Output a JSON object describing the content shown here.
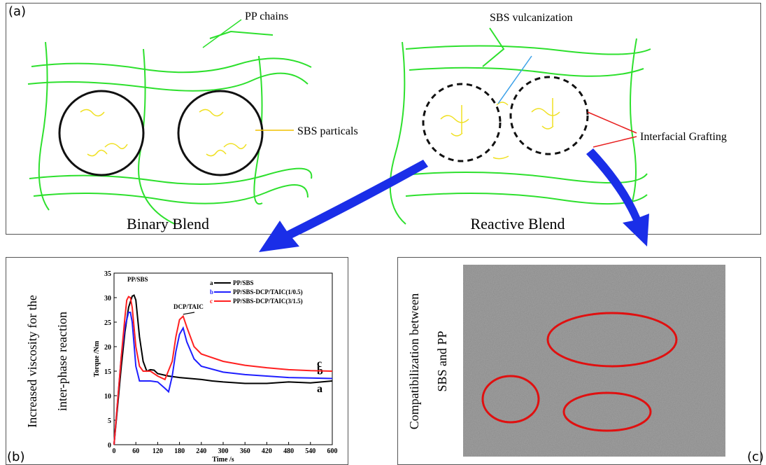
{
  "panel_a": {
    "tag": "(a)",
    "pp_chains": "PP chains",
    "sbs_vulcanization": "SBS vulcanization",
    "sbs_particals": "SBS particals",
    "interfacial_grafting": "Interfacial Grafting",
    "binary_blend": "Binary Blend",
    "reactive_blend": "Reactive Blend"
  },
  "panel_b": {
    "tag": "(b)",
    "caption_lines": [
      "Increased viscosity for the",
      "inter-phase reaction"
    ]
  },
  "chart_data": {
    "type": "line",
    "xlabel": "Time /s",
    "ylabel": "Torque /Nm",
    "xlim": [
      0,
      600
    ],
    "xticks": [
      0,
      60,
      120,
      180,
      240,
      300,
      360,
      420,
      480,
      540,
      600
    ],
    "ylim": [
      0,
      35
    ],
    "yticks": [
      0,
      5,
      10,
      15,
      20,
      25,
      30,
      35
    ],
    "annotations": [
      "PP/SBS",
      "DCP/TAIC"
    ],
    "legend": "upper right",
    "series": [
      {
        "key": "a",
        "name": "PP/SBS",
        "color": "#000000",
        "x": [
          0,
          10,
          20,
          30,
          40,
          50,
          55,
          60,
          70,
          80,
          90,
          100,
          110,
          120,
          150,
          180,
          210,
          240,
          270,
          300,
          360,
          420,
          480,
          540,
          600
        ],
        "values": [
          0,
          8,
          16,
          23,
          28,
          30.3,
          30.5,
          29.5,
          22,
          17,
          15,
          15.3,
          15.2,
          14.5,
          14,
          13.7,
          13.5,
          13.3,
          13,
          12.8,
          12.5,
          12.5,
          12.8,
          12.6,
          13
        ]
      },
      {
        "key": "b",
        "name": "PP/SBS-DCP/TAIC(1/0.5)",
        "color": "#1f1fff",
        "x": [
          0,
          10,
          20,
          30,
          40,
          45,
          50,
          60,
          70,
          80,
          100,
          120,
          140,
          150,
          160,
          170,
          180,
          190,
          200,
          220,
          240,
          300,
          360,
          420,
          480,
          540,
          600
        ],
        "values": [
          0,
          9,
          18,
          24,
          27,
          27,
          25,
          16,
          13,
          13,
          13,
          12.8,
          11.5,
          10.8,
          14,
          19,
          22.5,
          23.8,
          21,
          17.5,
          16,
          14.8,
          14.3,
          14,
          13.7,
          13.6,
          13.5
        ]
      },
      {
        "key": "c",
        "name": "PP/SBS-DCP/TAIC(3/1.5)",
        "color": "#ff2020",
        "x": [
          0,
          10,
          20,
          30,
          35,
          40,
          45,
          50,
          60,
          70,
          80,
          100,
          120,
          140,
          160,
          170,
          180,
          190,
          200,
          220,
          240,
          300,
          360,
          420,
          480,
          540,
          600
        ],
        "values": [
          0,
          9,
          18,
          26,
          29.5,
          30.2,
          30,
          28,
          20,
          16,
          15,
          15,
          14,
          13.3,
          17,
          22,
          25.5,
          26.2,
          24,
          20,
          18.5,
          17,
          16.2,
          15.7,
          15.3,
          15.1,
          15
        ]
      }
    ]
  },
  "panel_c": {
    "tag": "(c)",
    "caption_lines": [
      "Compatibilization between",
      "SBS and PP"
    ]
  }
}
